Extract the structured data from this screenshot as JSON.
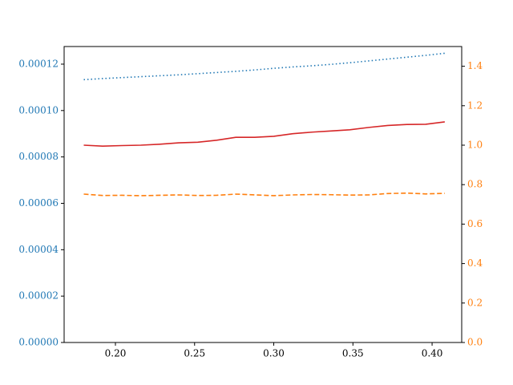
{
  "chart_data": {
    "type": "line",
    "x": [
      0.18,
      0.192,
      0.204,
      0.216,
      0.228,
      0.24,
      0.252,
      0.264,
      0.276,
      0.288,
      0.3,
      0.312,
      0.324,
      0.336,
      0.348,
      0.36,
      0.372,
      0.384,
      0.396,
      0.408
    ],
    "series": [
      {
        "color": "#1f77b4",
        "style": "dotted",
        "values": [
          0.0001133,
          0.0001138,
          0.0001142,
          0.0001146,
          0.000115,
          0.0001154,
          0.0001159,
          0.0001164,
          0.0001169,
          0.0001175,
          0.0001182,
          0.0001188,
          0.0001193,
          0.0001199,
          0.0001206,
          0.0001214,
          0.0001222,
          0.000123,
          0.0001238,
          0.0001247
        ]
      },
      {
        "color": "#d62728",
        "style": "solid",
        "axis": "y2",
        "values": [
          1.0,
          0.995,
          0.998,
          1.0,
          1.005,
          1.012,
          1.015,
          1.025,
          1.04,
          1.04,
          1.045,
          1.058,
          1.066,
          1.072,
          1.078,
          1.09,
          1.1,
          1.105,
          1.106,
          1.118
        ]
      },
      {
        "color": "#ff7f0e",
        "style": "dashed",
        "axis": "y2",
        "values": [
          0.752,
          0.745,
          0.746,
          0.744,
          0.746,
          0.748,
          0.745,
          0.746,
          0.752,
          0.748,
          0.744,
          0.748,
          0.75,
          0.749,
          0.747,
          0.748,
          0.755,
          0.757,
          0.753,
          0.756
        ]
      }
    ],
    "xlim": [
      0.1676,
      0.4187
    ],
    "xticks": [
      {
        "value": 0.2,
        "label": "0.20"
      },
      {
        "value": 0.25,
        "label": "0.25"
      },
      {
        "value": 0.3,
        "label": "0.30"
      },
      {
        "value": 0.35,
        "label": "0.35"
      },
      {
        "value": 0.4,
        "label": "0.40"
      }
    ],
    "ylim": [
      0,
      0.0001276
    ],
    "ycolor": "#1f77b4",
    "yticks": [
      {
        "value": 0,
        "label": "0.00000"
      },
      {
        "value": 2e-05,
        "label": "0.00002"
      },
      {
        "value": 4e-05,
        "label": "0.00004"
      },
      {
        "value": 6e-05,
        "label": "0.00006"
      },
      {
        "value": 8e-05,
        "label": "0.00008"
      },
      {
        "value": 0.0001,
        "label": "0.00010"
      },
      {
        "value": 0.00012,
        "label": "0.00012"
      }
    ],
    "y2lim": [
      0,
      1.5
    ],
    "y2color": "#ff7f0e",
    "y2ticks": [
      {
        "value": 0,
        "label": "0.0"
      },
      {
        "value": 0.2,
        "label": "0.2"
      },
      {
        "value": 0.4,
        "label": "0.4"
      },
      {
        "value": 0.6,
        "label": "0.6"
      },
      {
        "value": 0.8,
        "label": "0.8"
      },
      {
        "value": 1.0,
        "label": "1.0"
      },
      {
        "value": 1.2,
        "label": "1.2"
      },
      {
        "value": 1.4,
        "label": "1.4"
      }
    ]
  }
}
